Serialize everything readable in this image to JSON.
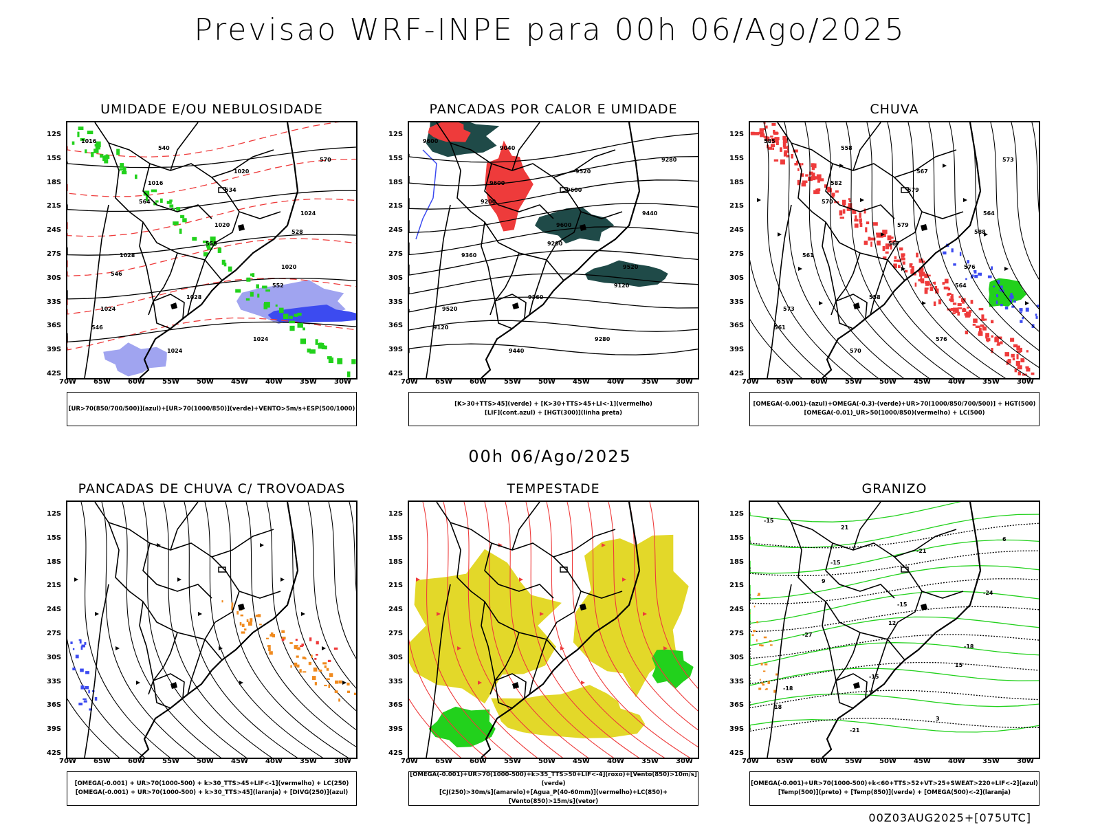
{
  "header": {
    "title": "Previsao WRF-INPE  para 00h 06/Ago/2025"
  },
  "subtitle": "00h 06/Ago/2025",
  "footer": "00Z03AUG2025+[075UTC]",
  "axes": {
    "lat_labels": [
      "12S",
      "15S",
      "18S",
      "21S",
      "24S",
      "27S",
      "30S",
      "33S",
      "36S",
      "39S",
      "42S"
    ],
    "lon_labels": [
      "70W",
      "65W",
      "60W",
      "55W",
      "50W",
      "45W",
      "40W",
      "35W",
      "30W"
    ]
  },
  "colors": {
    "green": "#22d11c",
    "red": "#ee3b3b",
    "blue": "#3c4bf0",
    "lightblue": "#a0a4f0",
    "darkteal": "#1f4a48",
    "yellow": "#e3d829",
    "orange": "#f08a1e",
    "black": "#000000"
  },
  "panels": [
    {
      "title": "UMIDADE E/OU NEBULOSIDADE",
      "legend": [
        "[UR>70(850/700/500)](azul)+[UR>70(1000/850)](verde)+VENTO>5m/s+ESP(500/1000)"
      ],
      "contour_labels": [
        "1016",
        "1016",
        "1020",
        "1020",
        "1024",
        "1024",
        "1020",
        "1024",
        "1028",
        "1028",
        "1024",
        "570",
        "564",
        "558",
        "552",
        "546",
        "540",
        "534",
        "528",
        "546"
      ]
    },
    {
      "title": "PANCADAS POR CALOR E UMIDADE",
      "legend": [
        "[K>30+TTS>45](verde) + [K>30+TTS>45+LI<-1](vermelho)",
        "[LIF](cont.azul) + [HGT(300)](linha preta)"
      ],
      "contour_labels": [
        "9600",
        "9600",
        "9600",
        "9520",
        "9520",
        "9440",
        "9520",
        "9440",
        "9360",
        "9360",
        "9280",
        "9280",
        "9200",
        "9200",
        "9120",
        "9120",
        "9040",
        "9600"
      ]
    },
    {
      "title": "CHUVA",
      "legend": [
        "[OMEGA(-0.001)-(azul)+OMEGA(-0.3)-(verde)+UR>70(1000/850/700/500)] + HGT(500)",
        "[OMEGA(-0.01)_UR>50(1000/850)(vermelho) + LC(500)"
      ],
      "contour_labels": [
        "585",
        "582",
        "579",
        "576",
        "573",
        "570",
        "567",
        "564",
        "561",
        "558",
        "576",
        "573",
        "570",
        "567",
        "564",
        "561",
        "558",
        "579",
        "588"
      ]
    },
    {
      "title": "PANCADAS DE CHUVA C/ TROVOADAS",
      "legend": [
        "[OMEGA(-0.001) + UR>70(1000-500) + k>30_TTS>45+LIF<-1](vermelho) + LC(250)",
        "[OMEGA(-0.001) + UR>70(1000-500) + k>30_TTS>45](laranja) + [DIVG(250)](azul)"
      ],
      "contour_labels": []
    },
    {
      "title": "TEMPESTADE",
      "legend": [
        "[OMEGA(-0.001)+UR>70(1000-500)+k>35_TTS>50+LIF<-4](roxo)+[Vento(850)>10m/s](verde)",
        "[CJ(250)>30m/s](amarelo)+[Agua_P(40-60mm)](vermelho)+LC(850)+[Vento(850)>15m/s](vetor)"
      ],
      "contour_labels": []
    },
    {
      "title": "GRANIZO",
      "legend": [
        "[OMEGA(-0.001)+UR>70(1000-500)+k<60+TTS>52+VT>25+SWEAT>220+LIF<-2](azul)",
        "[Temp(500)](preto) + [Temp(850)](verde) + [OMEGA(500)<-2](laranja)"
      ],
      "contour_labels": [
        "-15",
        "-15",
        "-15",
        "-18",
        "-18",
        "-21",
        "-21",
        "-24",
        "-27",
        "-15",
        "3",
        "6",
        "9",
        "12",
        "15",
        "18",
        "21"
      ]
    }
  ]
}
